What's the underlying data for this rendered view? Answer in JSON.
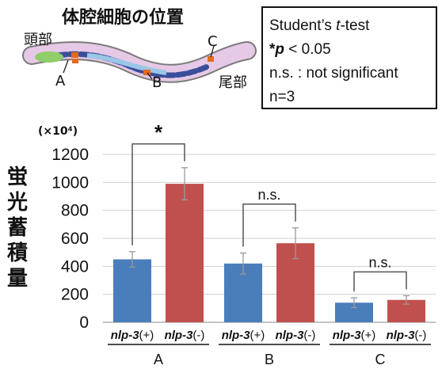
{
  "worm": {
    "title": "体腔細胞の位置",
    "head_label": "頭部",
    "tail_label": "尾部",
    "pos_a": "A",
    "pos_b": "B",
    "pos_c": "C"
  },
  "legend": {
    "line1_prefix": "Student’s ",
    "line1_italic": "t",
    "line1_suffix": "-test",
    "line2_star": "*",
    "line2_p": "p",
    "line2_rest": " < 0.05",
    "line3": "n.s. : not significant",
    "line4": "n=3"
  },
  "chart_data": {
    "type": "bar",
    "ylabel": "蛍光蓄積量",
    "unit_label": "(×10⁴)",
    "ylim": [
      0,
      1200
    ],
    "yticks": [
      0,
      200,
      400,
      600,
      800,
      1000,
      1200
    ],
    "grid": true,
    "groups": [
      "A",
      "B",
      "C"
    ],
    "bar_labels": [
      "nlp-3(+)",
      "nlp-3(-)",
      "nlp-3(+)",
      "nlp-3(-)",
      "nlp-3(+)",
      "nlp-3(-)"
    ],
    "series": [
      {
        "name": "nlp-3(+)",
        "color": "#4a7ebb",
        "values": [
          450,
          420,
          140
        ],
        "errors": [
          55,
          75,
          35
        ]
      },
      {
        "name": "nlp-3(-)",
        "color": "#c0504d",
        "values": [
          990,
          565,
          160
        ],
        "errors": [
          115,
          110,
          30
        ]
      }
    ],
    "significance": [
      "*",
      "n.s.",
      "n.s."
    ]
  }
}
